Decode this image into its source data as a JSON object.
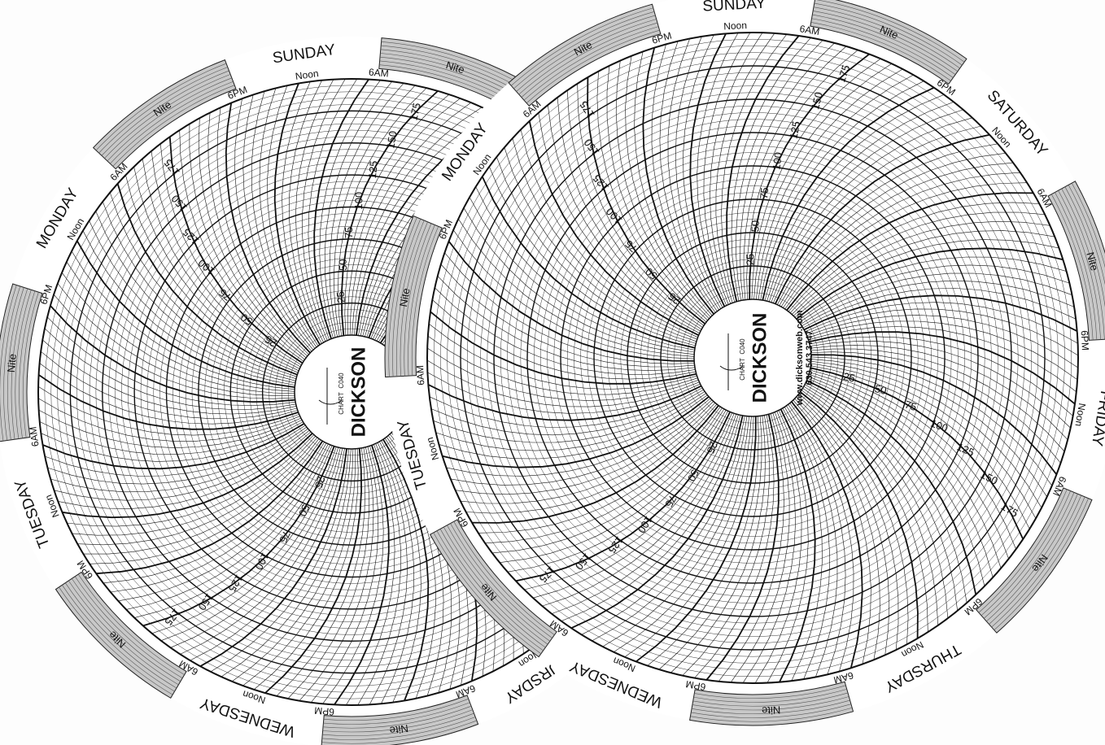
{
  "chart": {
    "brand": "DICKSON",
    "chart_label": "CHART",
    "model": "C040",
    "website": "www.dicksonweb.com",
    "phone": "630.543.3747",
    "days": [
      "SUNDAY",
      "MONDAY",
      "TUESDAY",
      "WEDNESDAY",
      "THURSDAY",
      "FRIDAY",
      "SATURDAY"
    ],
    "noon": "Noon",
    "morning": "6AM",
    "evening": "6PM",
    "night": "Nite",
    "scale": [
      25,
      50,
      75,
      100,
      125,
      150,
      175
    ],
    "scale_lim": [
      0,
      200
    ]
  }
}
